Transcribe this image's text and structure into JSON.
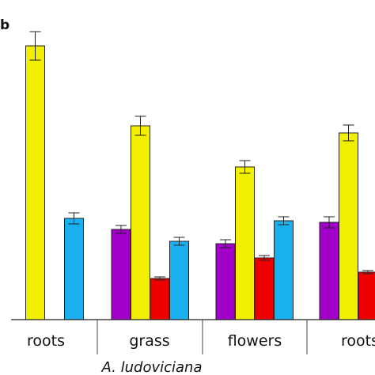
{
  "chart_data": {
    "type": "bar",
    "panel_label": "b",
    "categories": [
      "roots",
      "grass",
      "flowers",
      "roots"
    ],
    "group_label": "A. ludoviciana",
    "series": [
      {
        "color": "#a000c8",
        "values": [
          0,
          114,
          96,
          123
        ],
        "errors": [
          0,
          5,
          5,
          7
        ]
      },
      {
        "color": "#f2ef00",
        "values": [
          346,
          245,
          193,
          236
        ],
        "errors": [
          18,
          12,
          8,
          10
        ]
      },
      {
        "color": "#ee0000",
        "values": [
          0,
          52,
          78,
          60
        ],
        "errors": [
          0,
          2,
          3,
          2
        ]
      },
      {
        "color": "#1ab0f0",
        "values": [
          128,
          99,
          125,
          0
        ],
        "errors": [
          7,
          5,
          5,
          0
        ]
      }
    ],
    "ylim": [
      0,
      380
    ],
    "grid": false,
    "legend": "none"
  }
}
